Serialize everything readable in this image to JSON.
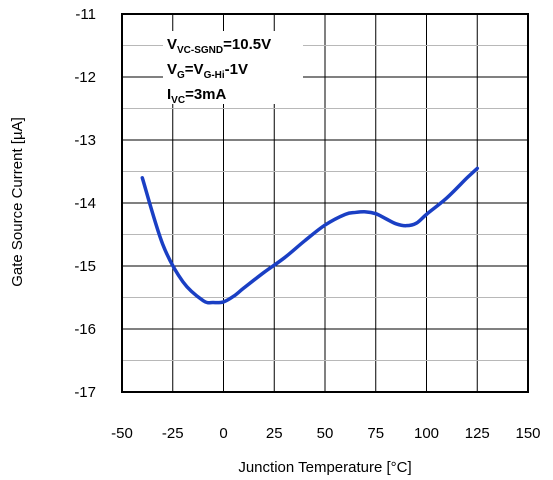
{
  "chart_data": {
    "type": "line",
    "title": "",
    "xlabel": "Junction Temperature [°C]",
    "ylabel": "Gate Source Current [µA]",
    "xlim": [
      -50,
      150
    ],
    "ylim": [
      -17,
      -11
    ],
    "xticks": [
      -50,
      -25,
      0,
      25,
      50,
      75,
      100,
      125,
      150
    ],
    "yticks": [
      -11,
      -12,
      -13,
      -14,
      -15,
      -16,
      -17
    ],
    "x_tick_labels": [
      "-50",
      "-25",
      "0",
      "25",
      "50",
      "75",
      "100",
      "125",
      "150"
    ],
    "y_tick_labels": [
      "-11",
      "-12",
      "-13",
      "-14",
      "-15",
      "-16",
      "-17"
    ],
    "grid": true,
    "minor_y_grid": true,
    "line_color": "#1a3fc4",
    "series": [
      {
        "x": [
          -40,
          -30,
          -20,
          -10,
          -5,
          0,
          5,
          10,
          20,
          30,
          40,
          50,
          60,
          65,
          70,
          75,
          80,
          85,
          90,
          95,
          100,
          110,
          120,
          125
        ],
        "y": [
          -13.6,
          -14.65,
          -15.25,
          -15.55,
          -15.58,
          -15.57,
          -15.48,
          -15.35,
          -15.1,
          -14.87,
          -14.6,
          -14.35,
          -14.18,
          -14.15,
          -14.14,
          -14.17,
          -14.25,
          -14.33,
          -14.36,
          -14.32,
          -14.18,
          -13.92,
          -13.6,
          -13.45
        ]
      }
    ],
    "annotations": [
      {
        "id": "vvc",
        "parts": [
          {
            "text": "V",
            "sub": false
          },
          {
            "text": "VC-SGND",
            "sub": true
          },
          {
            "text": "=10.5V",
            "sub": false
          }
        ]
      },
      {
        "id": "vg",
        "parts": [
          {
            "text": "V",
            "sub": false
          },
          {
            "text": "G",
            "sub": true
          },
          {
            "text": "=V",
            "sub": false
          },
          {
            "text": "G-Hi",
            "sub": true
          },
          {
            "text": "-1V",
            "sub": false
          }
        ]
      },
      {
        "id": "ivc",
        "parts": [
          {
            "text": "I",
            "sub": false
          },
          {
            "text": "VC",
            "sub": true
          },
          {
            "text": "=3mA",
            "sub": false
          }
        ]
      }
    ]
  }
}
